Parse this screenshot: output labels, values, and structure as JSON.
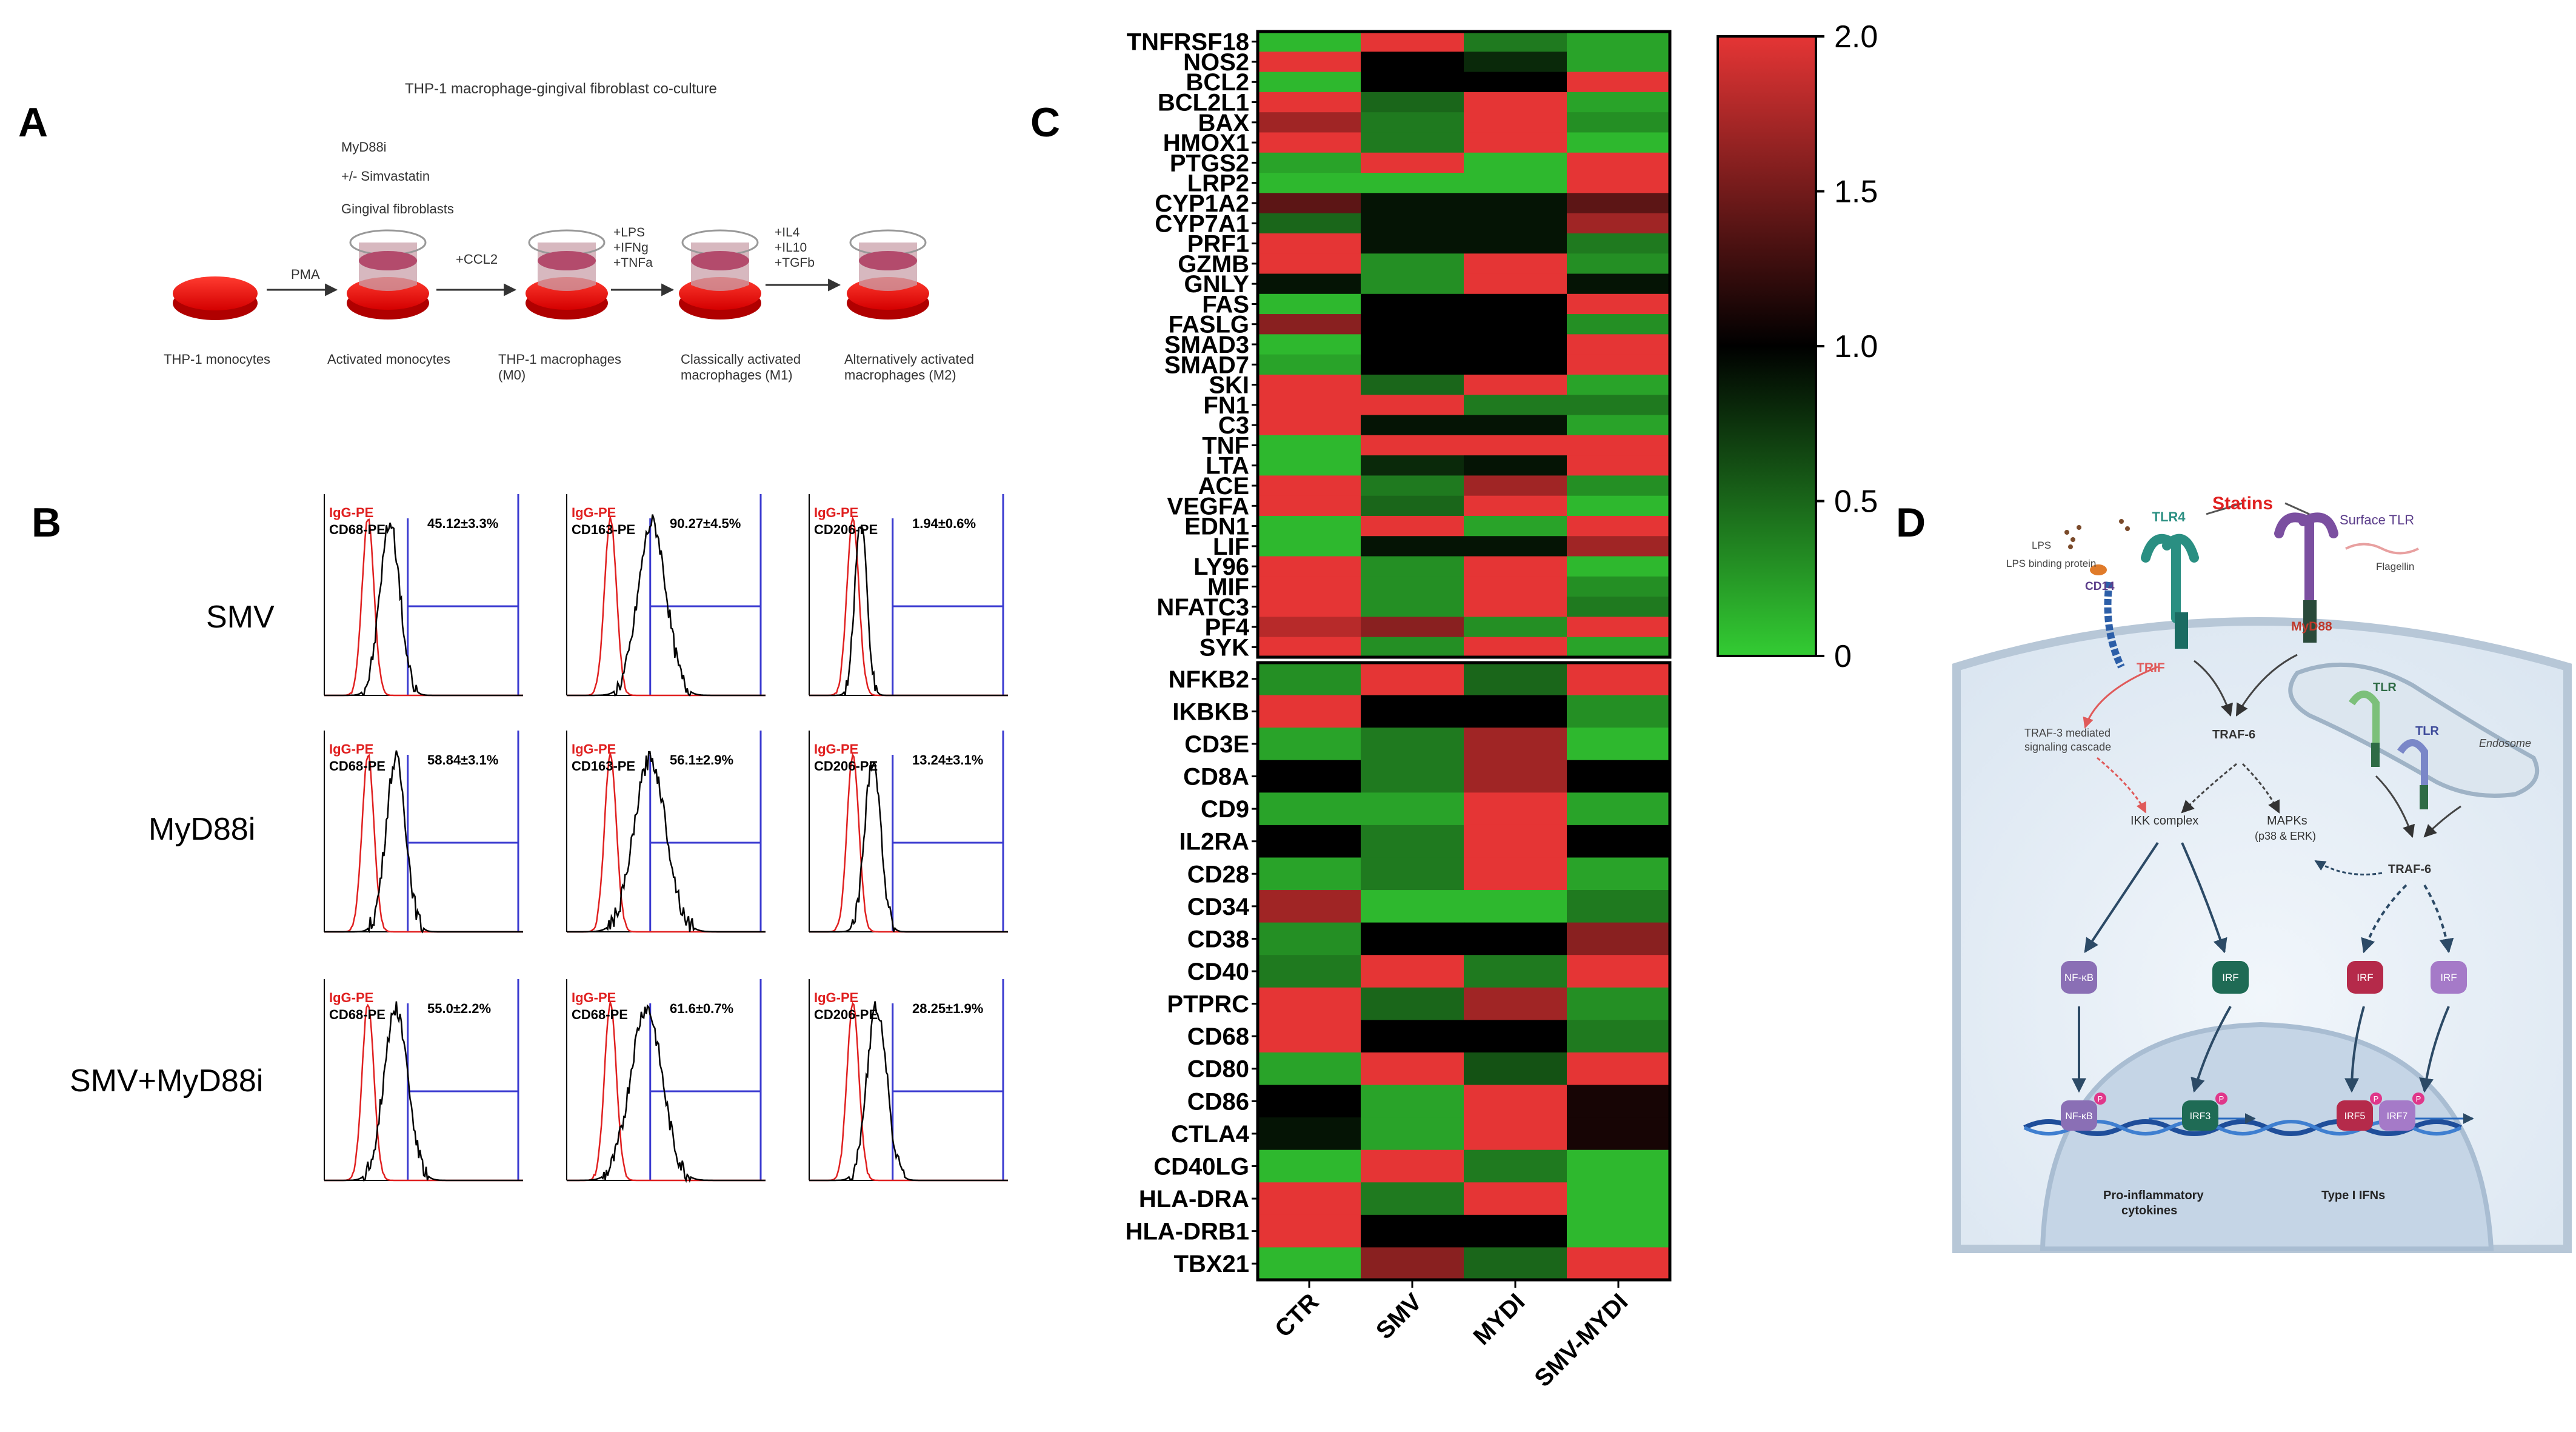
{
  "panel_labels": {
    "a": "A",
    "b": "B",
    "c": "C",
    "d": "D"
  },
  "panelA": {
    "title": "THP-1 macrophage-gingival fibroblast co-culture",
    "treatments": [
      "MyD88i",
      "+/- Simvastatin",
      "Gingival fibroblasts"
    ],
    "arrows": [
      [
        "PMA"
      ],
      [
        "+CCL2"
      ],
      [
        "+LPS",
        "+IFNg",
        "+TNFa"
      ],
      [
        "+IL4",
        "+IL10",
        "+TGFb"
      ]
    ],
    "stages": [
      [
        "THP-1 monocytes"
      ],
      [
        "Activated monocytes"
      ],
      [
        "THP-1 macrophages",
        "(M0)"
      ],
      [
        "Classically activated",
        "macrophages (M1)"
      ],
      [
        "Alternatively activated",
        "macrophages (M2)"
      ]
    ]
  },
  "panelB": {
    "rows": [
      {
        "label": "SMV",
        "plots": [
          {
            "ctrl": "IgG-PE",
            "marker": "CD68-PE",
            "value": "45.12±3.3%"
          },
          {
            "ctrl": "IgG-PE",
            "marker": "CD163-PE",
            "value": "90.27±4.5%"
          },
          {
            "ctrl": "IgG-PE",
            "marker": "CD206-PE",
            "value": "1.94±0.6%"
          }
        ]
      },
      {
        "label": "MyD88i",
        "plots": [
          {
            "ctrl": "IgG-PE",
            "marker": "CD68-PE",
            "value": "58.84±3.1%"
          },
          {
            "ctrl": "IgG-PE",
            "marker": "CD163-PE",
            "value": "56.1±2.9%"
          },
          {
            "ctrl": "IgG-PE",
            "marker": "CD206-PE",
            "value": "13.24±3.1%"
          }
        ]
      },
      {
        "label": "SMV+MyD88i",
        "plots": [
          {
            "ctrl": "IgG-PE",
            "marker": "CD68-PE",
            "value": "55.0±2.2%"
          },
          {
            "ctrl": "IgG-PE",
            "marker": "CD68-PE",
            "value": "61.6±0.7%"
          },
          {
            "ctrl": "IgG-PE",
            "marker": "CD206-PE",
            "value": "28.25±1.9%"
          }
        ]
      }
    ]
  },
  "chart_data": {
    "type": "heatmap",
    "title": "",
    "colorscale": {
      "low": "#33cc33",
      "mid": "#000000",
      "high": "#e53535",
      "vmin": 0,
      "vmid": 1.0,
      "vmax": 2.0
    },
    "colorbar_ticks": [
      "0",
      "0.5",
      "1.0",
      "1.5",
      "2.0"
    ],
    "colorbar_tick_values": [
      0,
      0.5,
      1.0,
      1.5,
      2.0
    ],
    "columns": [
      "CTR",
      "SMV",
      "MYDI",
      "SMV-MYDI"
    ],
    "top_genes": [
      "TNFRSF18",
      "NOS2",
      "BCL2",
      "BCL2L1",
      "BAX",
      "HMOX1",
      "PTGS2",
      "LRP2",
      "CYP1A2",
      "CYP7A1",
      "PRF1",
      "GZMB",
      "GNLY",
      "FAS",
      "FASLG",
      "SMAD3",
      "SMAD7",
      "SKI",
      "FN1",
      "C3",
      "TNF",
      "LTA",
      "ACE",
      "VEGFA",
      "EDN1",
      "LIF",
      "LY96",
      "MIF",
      "NFATC3",
      "PF4",
      "SYK"
    ],
    "top_values": [
      [
        0.1,
        2.0,
        0.4,
        0.2
      ],
      [
        2.0,
        1.0,
        0.8,
        0.2
      ],
      [
        0.1,
        1.0,
        1.0,
        2.0
      ],
      [
        2.0,
        0.5,
        2.0,
        0.2
      ],
      [
        1.7,
        0.4,
        2.0,
        0.3
      ],
      [
        2.0,
        0.4,
        2.0,
        0.1
      ],
      [
        0.2,
        2.0,
        0.1,
        2.0
      ],
      [
        0.1,
        0.1,
        0.1,
        2.0
      ],
      [
        1.4,
        0.9,
        0.9,
        1.4
      ],
      [
        0.5,
        0.9,
        0.9,
        1.7
      ],
      [
        2.0,
        0.9,
        0.9,
        0.4
      ],
      [
        2.0,
        0.3,
        2.0,
        0.3
      ],
      [
        0.9,
        0.3,
        2.0,
        0.9
      ],
      [
        0.1,
        1.0,
        1.0,
        2.0
      ],
      [
        1.6,
        1.0,
        1.0,
        0.3
      ],
      [
        0.1,
        1.0,
        1.0,
        2.0
      ],
      [
        0.2,
        1.0,
        1.0,
        2.0
      ],
      [
        2.0,
        0.5,
        2.0,
        0.2
      ],
      [
        2.0,
        2.0,
        0.4,
        0.4
      ],
      [
        2.0,
        0.9,
        0.9,
        0.2
      ],
      [
        0.1,
        2.0,
        2.0,
        2.0
      ],
      [
        0.1,
        0.8,
        0.9,
        2.0
      ],
      [
        2.0,
        0.4,
        1.7,
        0.3
      ],
      [
        2.0,
        0.5,
        2.0,
        0.1
      ],
      [
        0.1,
        2.0,
        0.2,
        2.0
      ],
      [
        0.1,
        0.9,
        0.9,
        1.7
      ],
      [
        2.0,
        0.3,
        2.0,
        0.1
      ],
      [
        2.0,
        0.3,
        2.0,
        0.3
      ],
      [
        2.0,
        0.3,
        2.0,
        0.4
      ],
      [
        1.8,
        1.6,
        0.3,
        2.0
      ],
      [
        2.0,
        0.3,
        2.0,
        0.2
      ]
    ],
    "bottom_genes": [
      "NFKB2",
      "IKBKB",
      "CD3E",
      "CD8A",
      "CD9",
      "IL2RA",
      "CD28",
      "CD34",
      "CD38",
      "CD40",
      "PTPRC",
      "CD68",
      "CD80",
      "CD86",
      "CTLA4",
      "CD40LG",
      "HLA-DRA",
      "HLA-DRB1",
      "TBX21"
    ],
    "bottom_values": [
      [
        0.3,
        2.0,
        0.5,
        2.0
      ],
      [
        2.0,
        1.0,
        1.0,
        0.3
      ],
      [
        0.2,
        0.4,
        1.7,
        0.1
      ],
      [
        1.0,
        0.4,
        1.7,
        1.0
      ],
      [
        0.2,
        0.2,
        2.0,
        0.2
      ],
      [
        1.0,
        0.4,
        2.0,
        1.0
      ],
      [
        0.2,
        0.4,
        2.0,
        0.2
      ],
      [
        1.7,
        0.1,
        0.1,
        0.4
      ],
      [
        0.3,
        1.0,
        1.0,
        1.6
      ],
      [
        0.4,
        2.0,
        0.4,
        2.0
      ],
      [
        2.0,
        0.5,
        1.7,
        0.3
      ],
      [
        2.0,
        1.0,
        1.0,
        0.4
      ],
      [
        0.2,
        2.0,
        0.6,
        2.0
      ],
      [
        1.0,
        0.2,
        2.0,
        1.1
      ],
      [
        0.9,
        0.2,
        2.0,
        1.1
      ],
      [
        0.1,
        2.0,
        0.4,
        0.1
      ],
      [
        2.0,
        0.4,
        2.0,
        0.1
      ],
      [
        2.0,
        1.0,
        1.0,
        0.1
      ],
      [
        0.1,
        1.6,
        0.5,
        2.0
      ]
    ]
  },
  "panelD": {
    "statins": "Statins",
    "tlr4": "TLR4",
    "surface_tlr": "Surface TLR",
    "lps": "LPS",
    "lbp": "LPS binding protein",
    "cd14": "CD14",
    "flagellin": "Flagellin",
    "myd88": "MyD88",
    "trif": "TRIF",
    "traf3": [
      "TRAF-3 mediated",
      "signaling cascade"
    ],
    "traf6a": "TRAF-6",
    "traf6b": "TRAF-6",
    "tlr_endo1": "TLR",
    "tlr_endo2": "TLR",
    "endosome": "Endosome",
    "ikk": "IKK complex",
    "mapks": [
      "MAPKs",
      "(p38 & ERK)"
    ],
    "nfkb": "NF-κB",
    "irf": "IRF",
    "irf_b": "IRF",
    "irf_c": "IRF",
    "nfkb_n": "NF-κB",
    "irf3": "IRF3",
    "irf5": "IRF5",
    "irf7": "IRF7",
    "out1": [
      "Pro-inflammatory",
      "cytokines"
    ],
    "out2": "Type I IFNs",
    "p": "P"
  }
}
